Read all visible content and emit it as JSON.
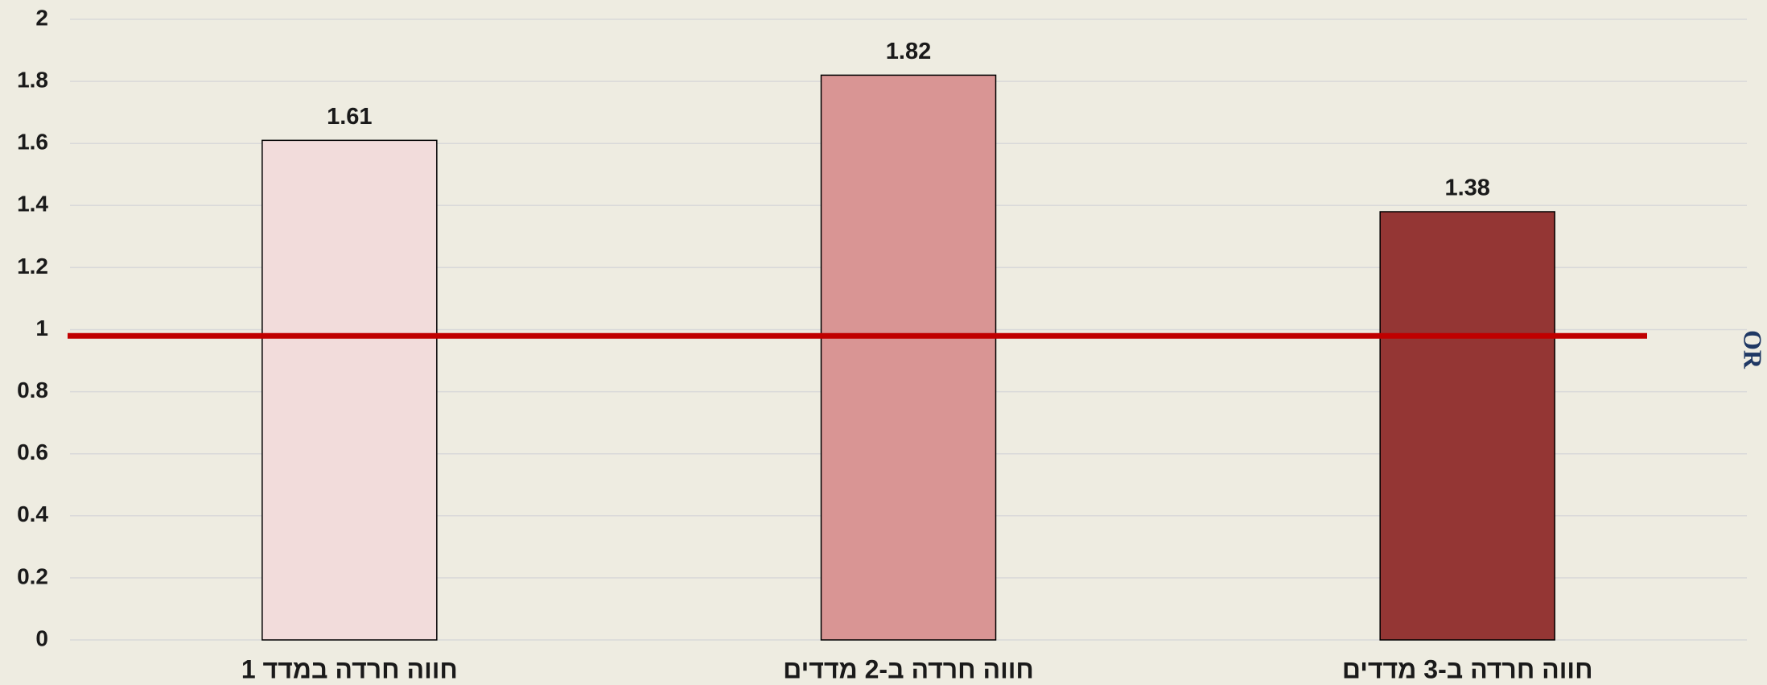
{
  "chart_data": {
    "type": "bar",
    "categories": [
      "חווה חרדה במדד 1",
      "חווה חרדה ב-2 מדדים",
      "חווה חרדה ב-3 מדדים"
    ],
    "values": [
      1.61,
      1.82,
      1.38
    ],
    "colors": [
      "#f2dcdb",
      "#d99594",
      "#943634"
    ],
    "ylim": [
      0,
      2
    ],
    "yticks": [
      0,
      0.2,
      0.4,
      0.6,
      0.8,
      1,
      1.2,
      1.4,
      1.6,
      1.8,
      2
    ],
    "grid": true,
    "y2_label": "OR",
    "reference_line": {
      "value": 0.98,
      "color": "#c00000"
    }
  }
}
